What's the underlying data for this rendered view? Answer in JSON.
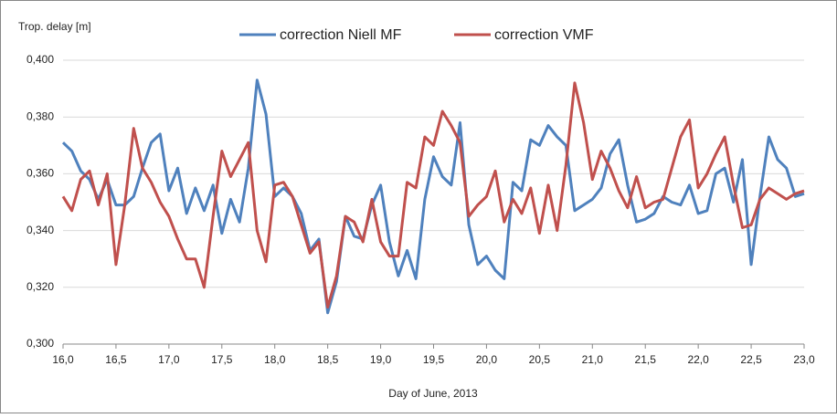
{
  "chart_data": {
    "type": "line",
    "ylabel": "Trop. delay [m]",
    "xlabel": "Day of June, 2013",
    "x": [
      16,
      16.083,
      16.167,
      16.25,
      16.333,
      16.417,
      16.5,
      16.583,
      16.667,
      16.75,
      16.833,
      16.917,
      17,
      17.083,
      17.167,
      17.25,
      17.333,
      17.417,
      17.5,
      17.583,
      17.667,
      17.75,
      17.833,
      17.917,
      18,
      18.083,
      18.167,
      18.25,
      18.333,
      18.417,
      18.5,
      18.583,
      18.667,
      18.75,
      18.833,
      18.917,
      19,
      19.083,
      19.167,
      19.25,
      19.333,
      19.417,
      19.5,
      19.583,
      19.667,
      19.75,
      19.833,
      19.917,
      20,
      20.083,
      20.167,
      20.25,
      20.333,
      20.417,
      20.5,
      20.583,
      20.667,
      20.75,
      20.833,
      20.917,
      21,
      21.083,
      21.167,
      21.25,
      21.333,
      21.417,
      21.5,
      21.583,
      21.667,
      21.75,
      21.833,
      21.917,
      22,
      22.083,
      22.167,
      22.25,
      22.333,
      22.417,
      22.5,
      22.583,
      22.667,
      22.75,
      22.833,
      22.917,
      23
    ],
    "series": [
      {
        "name": "correction Niell MF",
        "color": "#4f81bd",
        "values": [
          0.371,
          0.368,
          0.361,
          0.358,
          0.351,
          0.358,
          0.349,
          0.349,
          0.352,
          0.362,
          0.371,
          0.374,
          0.354,
          0.362,
          0.346,
          0.355,
          0.347,
          0.356,
          0.339,
          0.351,
          0.343,
          0.362,
          0.393,
          0.381,
          0.352,
          0.355,
          0.352,
          0.346,
          0.333,
          0.337,
          0.311,
          0.322,
          0.345,
          0.338,
          0.337,
          0.349,
          0.356,
          0.336,
          0.324,
          0.333,
          0.323,
          0.351,
          0.366,
          0.359,
          0.356,
          0.378,
          0.342,
          0.328,
          0.331,
          0.326,
          0.323,
          0.357,
          0.354,
          0.372,
          0.37,
          0.377,
          0.373,
          0.37,
          0.347,
          0.349,
          0.351,
          0.355,
          0.367,
          0.372,
          0.356,
          0.343,
          0.344,
          0.346,
          0.352,
          0.35,
          0.349,
          0.356,
          0.346,
          0.347,
          0.36,
          0.362,
          0.35,
          0.365,
          0.328,
          0.352,
          0.373,
          0.365,
          0.362,
          0.352,
          0.353
        ]
      },
      {
        "name": "correction VMF",
        "color": "#c0504d",
        "values": [
          0.352,
          0.347,
          0.358,
          0.361,
          0.349,
          0.36,
          0.328,
          0.349,
          0.376,
          0.362,
          0.357,
          0.35,
          0.345,
          0.337,
          0.33,
          0.33,
          0.32,
          0.345,
          0.368,
          0.359,
          0.365,
          0.371,
          0.34,
          0.329,
          0.356,
          0.357,
          0.352,
          0.342,
          0.332,
          0.336,
          0.313,
          0.324,
          0.345,
          0.343,
          0.336,
          0.351,
          0.336,
          0.331,
          0.331,
          0.357,
          0.355,
          0.373,
          0.37,
          0.382,
          0.377,
          0.371,
          0.345,
          0.349,
          0.352,
          0.361,
          0.343,
          0.351,
          0.346,
          0.355,
          0.339,
          0.356,
          0.34,
          0.363,
          0.392,
          0.378,
          0.358,
          0.368,
          0.362,
          0.354,
          0.348,
          0.359,
          0.348,
          0.35,
          0.351,
          0.362,
          0.373,
          0.379,
          0.355,
          0.36,
          0.367,
          0.373,
          0.356,
          0.341,
          0.342,
          0.351,
          0.355,
          0.353,
          0.351,
          0.353,
          0.354
        ]
      }
    ],
    "xlim": [
      16,
      23
    ],
    "xticks": [
      {
        "value": 16,
        "label": "16,0"
      },
      {
        "value": 16.5,
        "label": "16,5"
      },
      {
        "value": 17,
        "label": "17,0"
      },
      {
        "value": 17.5,
        "label": "17,5"
      },
      {
        "value": 18,
        "label": "18,0"
      },
      {
        "value": 18.5,
        "label": "18,5"
      },
      {
        "value": 19,
        "label": "19,0"
      },
      {
        "value": 19.5,
        "label": "19,5"
      },
      {
        "value": 20,
        "label": "20,0"
      },
      {
        "value": 20.5,
        "label": "20,5"
      },
      {
        "value": 21,
        "label": "21,0"
      },
      {
        "value": 21.5,
        "label": "21,5"
      },
      {
        "value": 22,
        "label": "22,0"
      },
      {
        "value": 22.5,
        "label": "22,5"
      },
      {
        "value": 23,
        "label": "23,0"
      }
    ],
    "ylim": [
      0.3,
      0.4
    ],
    "yticks": [
      {
        "value": 0.3,
        "label": "0,300"
      },
      {
        "value": 0.32,
        "label": "0,320"
      },
      {
        "value": 0.34,
        "label": "0,340"
      },
      {
        "value": 0.36,
        "label": "0,360"
      },
      {
        "value": 0.38,
        "label": "0,380"
      },
      {
        "value": 0.4,
        "label": "0,400"
      }
    ],
    "grid": true,
    "legend": "top"
  }
}
